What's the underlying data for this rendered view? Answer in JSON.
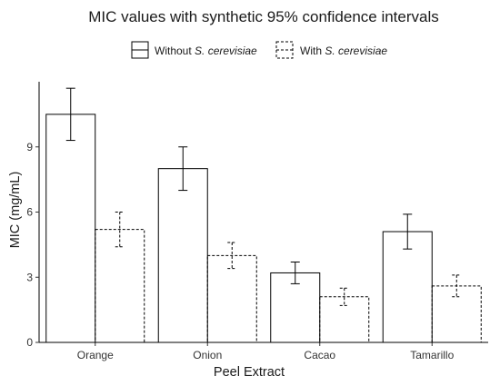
{
  "chart_data": {
    "type": "bar",
    "title": "MIC values with synthetic 95% confidence intervals",
    "xlabel": "Peel Extract",
    "ylabel": "MIC (mg/mL)",
    "categories": [
      "Orange",
      "Onion",
      "Cacao",
      "Tamarillo"
    ],
    "ylim": [
      0,
      12
    ],
    "yticks": [
      0,
      3,
      6,
      9
    ],
    "grid": false,
    "legend_position": "top",
    "series": [
      {
        "name": "Without S. cerevisiae",
        "legend_prefix": "Without ",
        "legend_italic": "S. cerevisiae",
        "line_style": "solid",
        "values": [
          10.5,
          8.0,
          3.2,
          5.1
        ],
        "ci_lower": [
          9.3,
          7.0,
          2.7,
          4.3
        ],
        "ci_upper": [
          11.7,
          9.0,
          3.7,
          5.9
        ]
      },
      {
        "name": "With S. cerevisiae",
        "legend_prefix": "With ",
        "legend_italic": "S. cerevisiae",
        "line_style": "dashed",
        "values": [
          5.2,
          4.0,
          2.1,
          2.6
        ],
        "ci_lower": [
          4.4,
          3.4,
          1.7,
          2.1
        ],
        "ci_upper": [
          6.0,
          4.6,
          2.5,
          3.1
        ]
      }
    ]
  }
}
